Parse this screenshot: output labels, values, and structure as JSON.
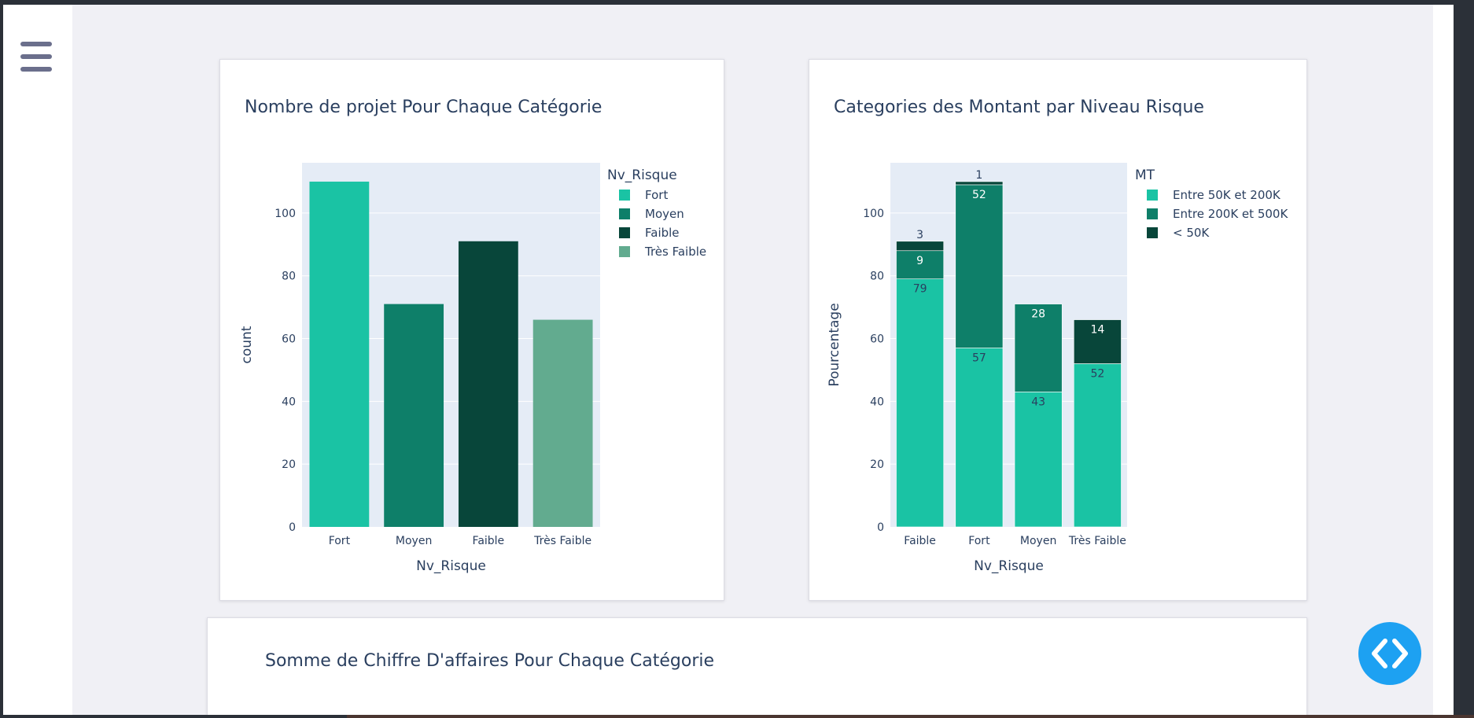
{
  "sidebar": {
    "menu_icon": "hamburger-menu-icon"
  },
  "fab": {
    "icon": "code-brackets-icon"
  },
  "colors": {
    "c1": "#1ac3a4",
    "c2": "#0e7f69",
    "c3": "#08463a",
    "c4": "#62ab8f",
    "plot_bg": "#e5ecf6",
    "text": "#2a3f5f"
  },
  "cards": [
    {
      "title": "Nombre de projet Pour Chaque Catégorie"
    },
    {
      "title": "Categories des Montant par Niveau Risque"
    },
    {
      "title": "Somme de Chiffre D'affaires Pour Chaque Catégorie"
    }
  ],
  "chart_data": [
    {
      "type": "bar",
      "title": "Nombre de projet Pour Chaque Catégorie",
      "xlabel": "Nv_Risque",
      "ylabel": "count",
      "ylim": [
        0,
        116
      ],
      "yticks": [
        0,
        20,
        40,
        60,
        80,
        100
      ],
      "categories": [
        "Fort",
        "Moyen",
        "Faible",
        "Très Faible"
      ],
      "values": [
        110,
        71,
        91,
        66
      ],
      "colors": [
        "#1ac3a4",
        "#0e7f69",
        "#08463a",
        "#62ab8f"
      ],
      "legend": {
        "title": "Nv_Risque",
        "position": "right",
        "entries": [
          {
            "name": "Fort",
            "color": "#1ac3a4"
          },
          {
            "name": "Moyen",
            "color": "#0e7f69"
          },
          {
            "name": "Faible",
            "color": "#08463a"
          },
          {
            "name": "Très Faible",
            "color": "#62ab8f"
          }
        ]
      },
      "grid": true
    },
    {
      "type": "bar",
      "stacked": true,
      "title": "Categories des Montant par Niveau Risque",
      "xlabel": "Nv_Risque",
      "ylabel": "Pourcentage",
      "ylim": [
        0,
        116
      ],
      "yticks": [
        0,
        20,
        40,
        60,
        80,
        100
      ],
      "categories": [
        "Faible",
        "Fort",
        "Moyen",
        "Très Faible"
      ],
      "series": [
        {
          "name": "Entre 50K et 200K",
          "color": "#1ac3a4",
          "values": [
            79,
            57,
            43,
            52
          ]
        },
        {
          "name": "Entre 200K et 500K",
          "color": "#0e7f69",
          "values": [
            9,
            52,
            28,
            0
          ]
        },
        {
          "name": "< 50K",
          "color": "#08463a",
          "values": [
            3,
            1,
            0,
            14
          ]
        }
      ],
      "legend": {
        "title": "MT",
        "position": "right"
      },
      "grid": true
    }
  ]
}
